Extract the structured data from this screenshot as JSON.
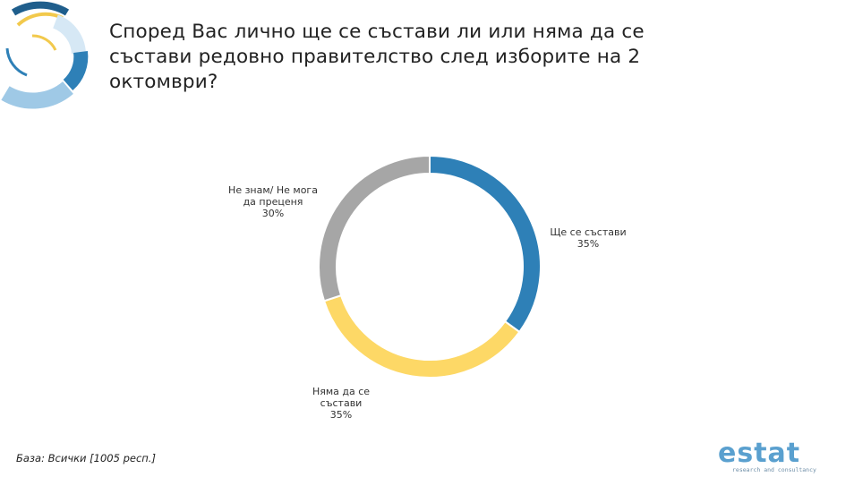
{
  "title": "Според Вас лично ще се състави ли или няма да се състави редовно правителство след изборите на 2 октомври?",
  "footer": {
    "base_note": "База: Всички [1005 респ.]"
  },
  "brand": {
    "name": "estat",
    "tagline": "research and consultancy"
  },
  "colors": {
    "blue": "#2e80b7",
    "yellow": "#fdd866",
    "gray": "#a6a6a6",
    "light_blue": "#9fc9e6",
    "navy": "#1f5e8c"
  },
  "chart_data": {
    "type": "pie",
    "donut": true,
    "slices": [
      {
        "label": [
          "Ще се състави"
        ],
        "value": 35,
        "display": "35%",
        "color": "#2e80b7"
      },
      {
        "label": [
          "Няма да се",
          "състави"
        ],
        "value": 35,
        "display": "35%",
        "color": "#fdd866"
      },
      {
        "label": [
          "Не знам/ Не мога",
          "да преценя"
        ],
        "value": 30,
        "display": "30%",
        "color": "#a6a6a6"
      }
    ]
  }
}
